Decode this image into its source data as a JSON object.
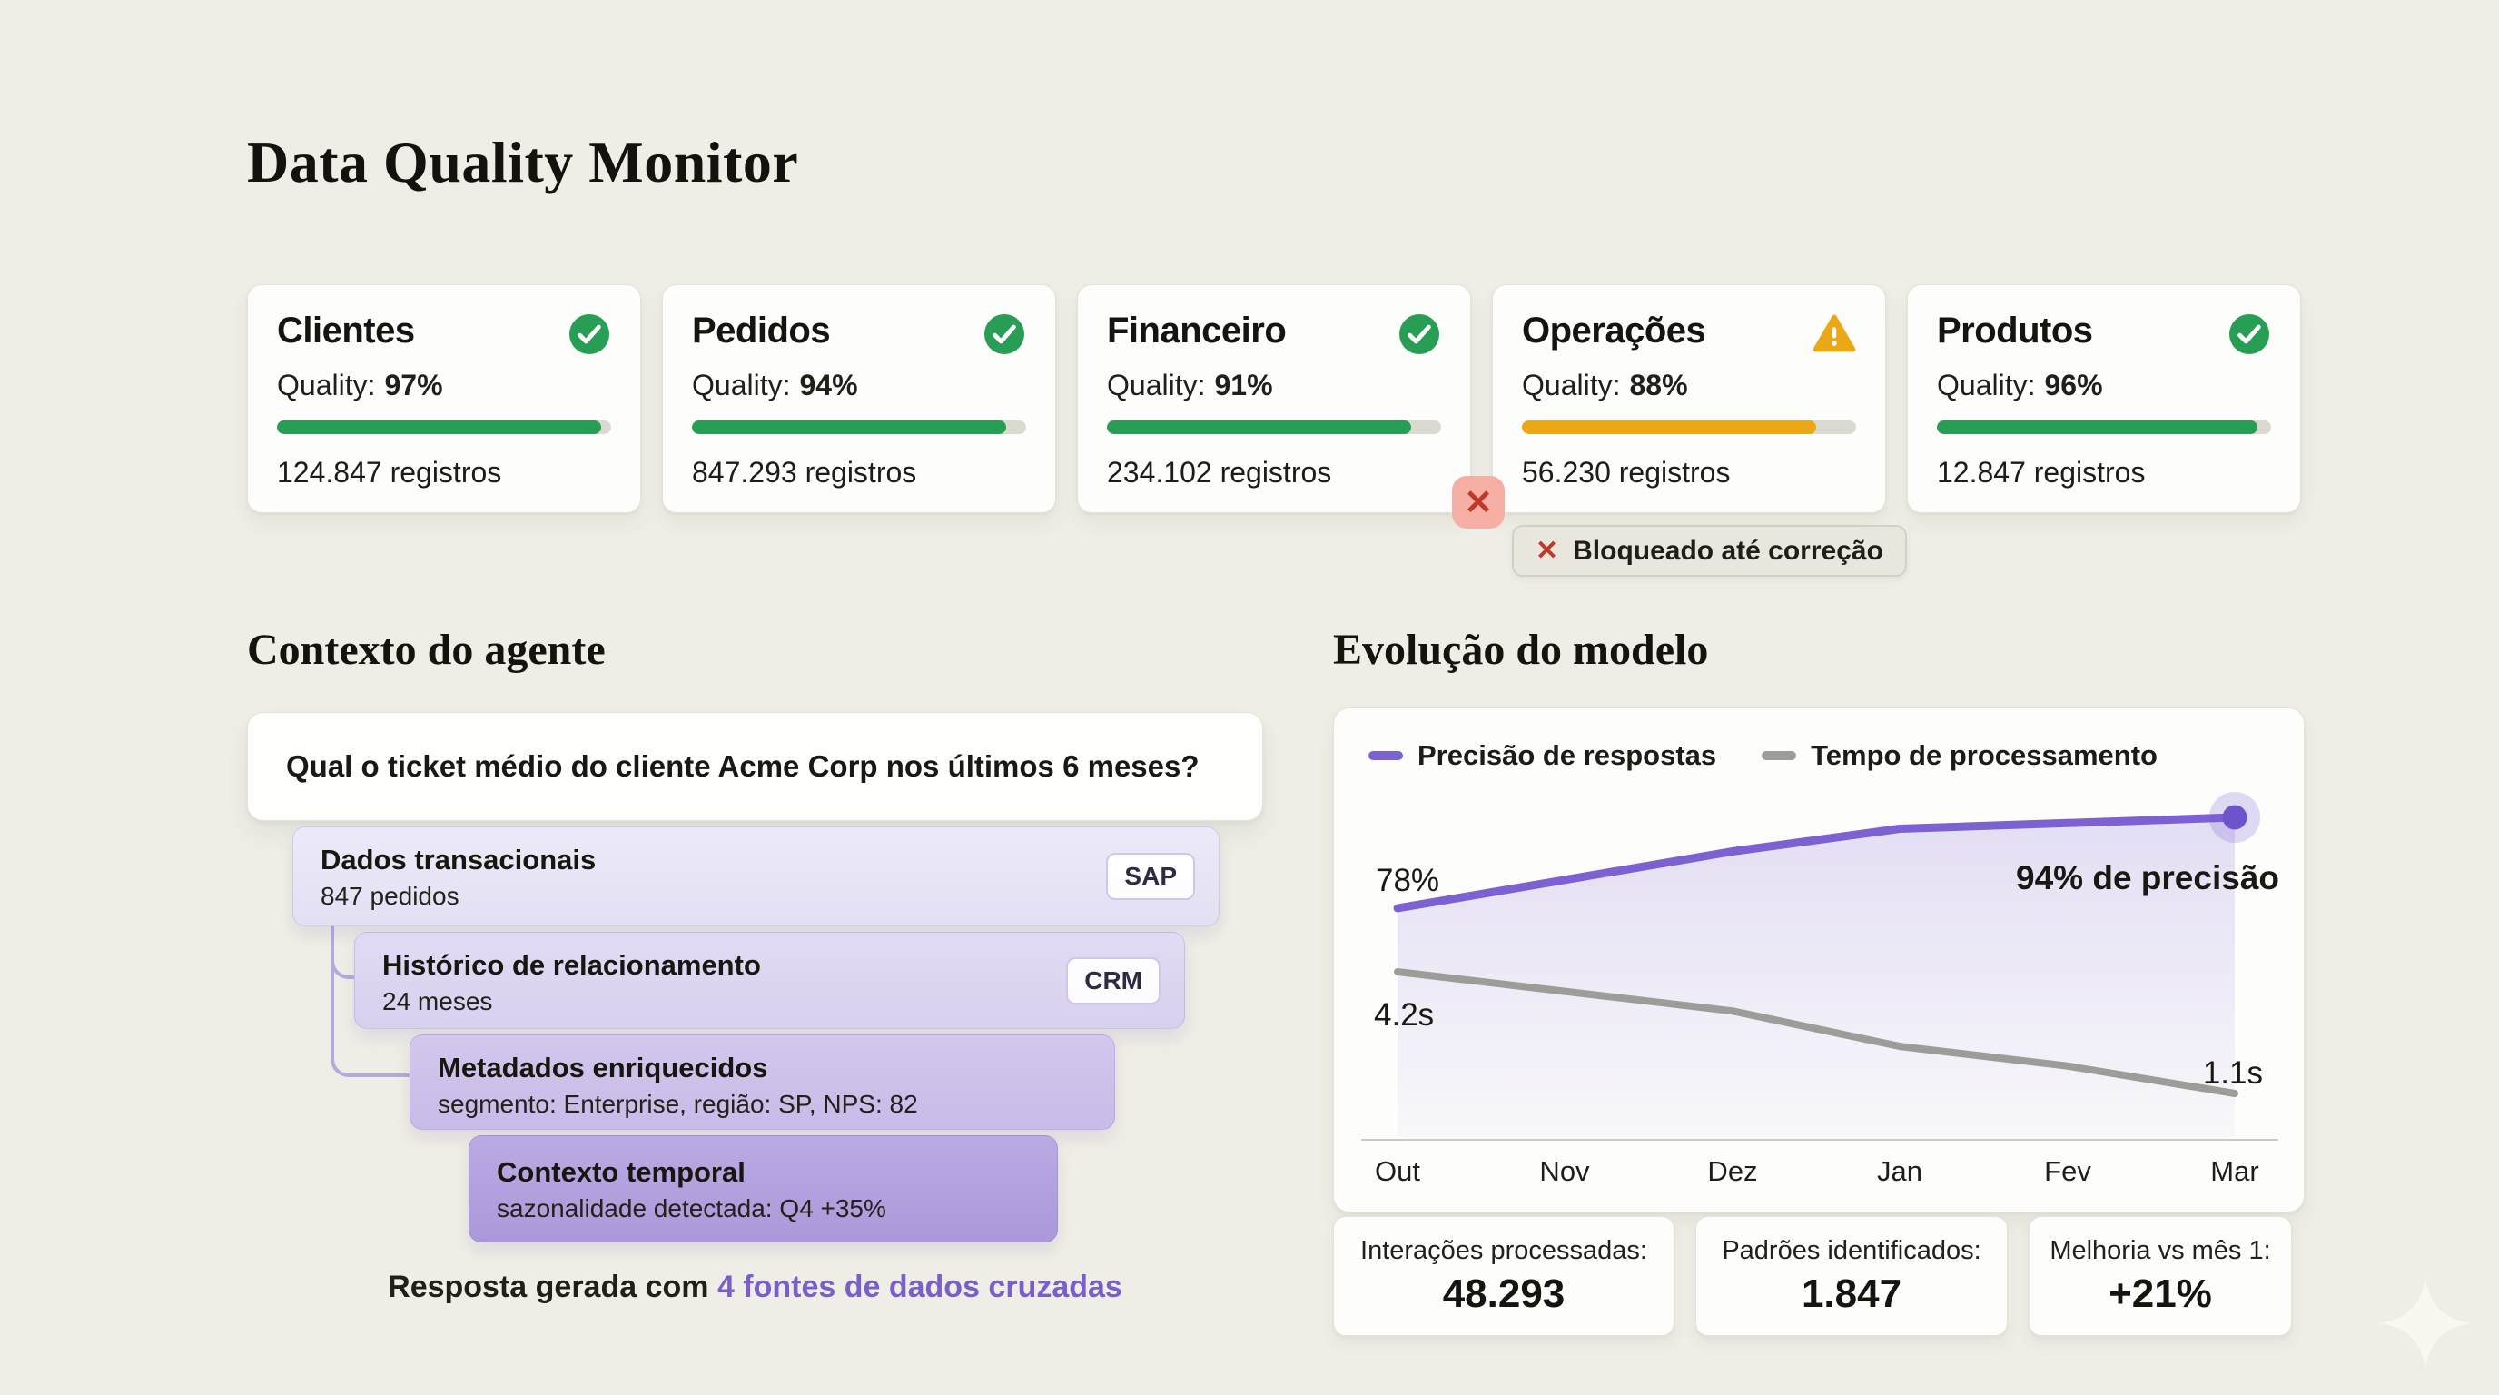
{
  "title": "Data Quality Monitor",
  "quality_label": "Quality:",
  "cards": [
    {
      "name": "Clientes",
      "quality": "97%",
      "pct": 97,
      "records": "124.847 registros",
      "status": "ok",
      "icon": "check-circle-icon"
    },
    {
      "name": "Pedidos",
      "quality": "94%",
      "pct": 94,
      "records": "847.293 registros",
      "status": "ok",
      "icon": "check-circle-icon"
    },
    {
      "name": "Financeiro",
      "quality": "91%",
      "pct": 91,
      "records": "234.102 registros",
      "status": "ok",
      "icon": "check-circle-icon"
    },
    {
      "name": "Operações",
      "quality": "88%",
      "pct": 88,
      "records": "56.230 registros",
      "status": "warning",
      "icon": "warning-triangle-icon"
    },
    {
      "name": "Produtos",
      "quality": "96%",
      "pct": 96,
      "records": "12.847 registros",
      "status": "ok",
      "icon": "check-circle-icon"
    }
  ],
  "blocked_badge": {
    "x_glyph": "✕",
    "label": "Bloqueado até correção"
  },
  "context": {
    "heading": "Contexto do agente",
    "query": "Qual o ticket médio do cliente Acme Corp nos últimos 6 meses?",
    "layers": [
      {
        "title": "Dados transacionais",
        "subtitle": "847 pedidos",
        "tag": "SAP"
      },
      {
        "title": "Histórico de relacionamento",
        "subtitle": "24 meses",
        "tag": "CRM"
      },
      {
        "title": "Metadados enriquecidos",
        "subtitle": "segmento: Enterprise, região: SP, NPS: 82",
        "tag": ""
      },
      {
        "title": "Contexto temporal",
        "subtitle": "sazonalidade detectada: Q4 +35%",
        "tag": ""
      }
    ],
    "footer_prefix": "Resposta gerada com ",
    "footer_link": "4 fontes de dados cruzadas"
  },
  "evolution": {
    "heading": "Evolução do modelo",
    "stats": [
      {
        "label": "Interações processadas:",
        "value": "48.293"
      },
      {
        "label": "Padrões identificados:",
        "value": "1.847"
      },
      {
        "label": "Melhoria vs mês 1:",
        "value": "+21%"
      }
    ]
  },
  "chart_data": {
    "type": "line",
    "categories": [
      "Out",
      "Nov",
      "Dez",
      "Jan",
      "Fev",
      "Mar"
    ],
    "series": [
      {
        "name": "Precisão de respostas",
        "color": "#7b61d1",
        "unit": "%",
        "values": [
          78,
          83,
          88,
          92,
          93,
          94
        ],
        "start_label": "78%",
        "end_label": "94% de precisão",
        "area_fill": true,
        "end_dot": true
      },
      {
        "name": "Tempo de processamento",
        "color": "#9c9c98",
        "unit": "s",
        "values": [
          4.2,
          3.7,
          3.2,
          2.3,
          1.8,
          1.1
        ],
        "start_label": "4.2s",
        "end_label": "1.1s",
        "area_fill": false,
        "end_dot": false
      }
    ],
    "legend_position": "top",
    "grid": false,
    "accuracy_range": [
      78,
      94
    ],
    "time_range_s": [
      1.1,
      4.2
    ]
  },
  "colors": {
    "background": "#efeee6",
    "green": "#279e54",
    "amber": "#eaa816",
    "purple_line": "#7b61d1",
    "gray_line": "#9c9c98",
    "link_purple": "#7a5ec9",
    "danger_red": "#c1382a"
  }
}
